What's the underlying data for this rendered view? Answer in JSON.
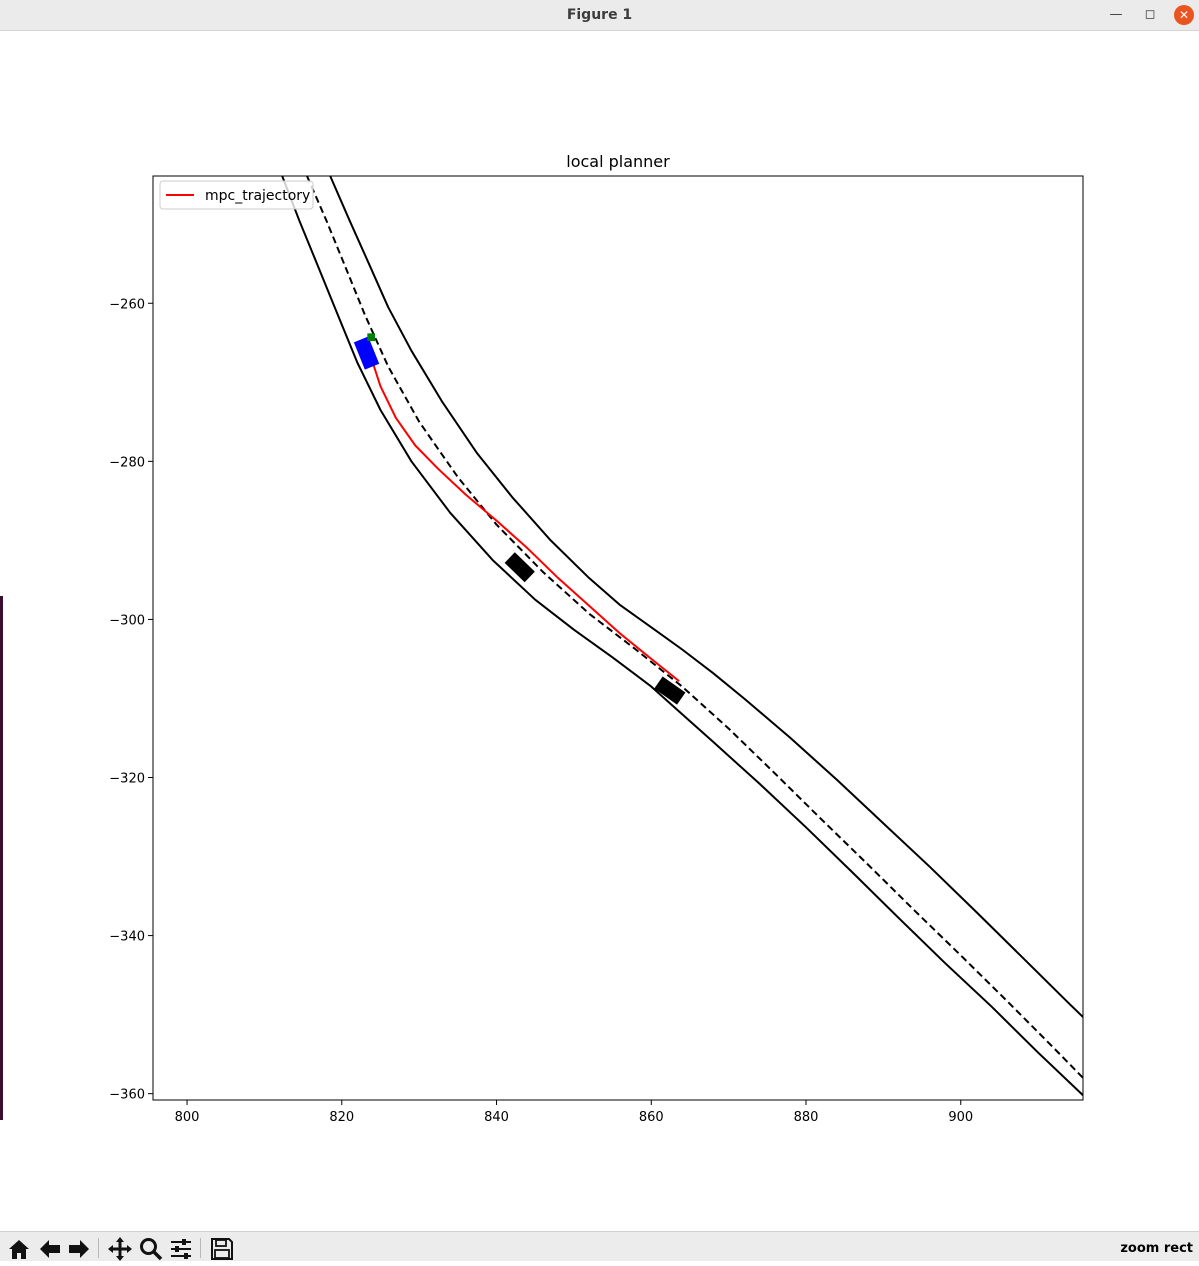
{
  "window": {
    "title": "Figure 1",
    "minimize_icon": "minimize-icon",
    "maximize_icon": "maximize-icon",
    "close_icon": "close-icon"
  },
  "toolbar": {
    "buttons": [
      {
        "name": "home-button",
        "icon": "home-icon"
      },
      {
        "name": "back-button",
        "icon": "arrow-left-icon"
      },
      {
        "name": "forward-button",
        "icon": "arrow-right-icon"
      },
      {
        "name": "pan-button",
        "icon": "move-icon"
      },
      {
        "name": "zoom-button",
        "icon": "magnifier-icon"
      },
      {
        "name": "configure-subplots-button",
        "icon": "sliders-icon"
      },
      {
        "name": "save-button",
        "icon": "floppy-icon"
      }
    ],
    "status": "zoom rect"
  },
  "chart_data": {
    "type": "line",
    "title": "local planner",
    "xlabel": "",
    "ylabel": "",
    "xlim": [
      795.6,
      915.8
    ],
    "ylim": [
      -360.8,
      -243.9
    ],
    "xticks": [
      800,
      820,
      840,
      860,
      880,
      900
    ],
    "yticks": [
      -260,
      -280,
      -300,
      -320,
      -340,
      -360
    ],
    "grid": false,
    "legend": {
      "location": "upper-left",
      "entries": [
        {
          "label": "mpc_trajectory",
          "color": "#ff0000"
        }
      ]
    },
    "series": [
      {
        "name": "mpc_trajectory",
        "color": "#ff0000",
        "style": "solid",
        "x": [
          823.6,
          825.0,
          827.0,
          829.5,
          832.5,
          836.0,
          840.0,
          844.0,
          848.0,
          852.0,
          856.0,
          860.0,
          863.6
        ],
        "y": [
          -266.3,
          -270.5,
          -274.5,
          -278.0,
          -281.0,
          -284.2,
          -287.5,
          -291.0,
          -294.8,
          -298.3,
          -301.8,
          -305.0,
          -307.8
        ]
      },
      {
        "color": "#000000",
        "style": "dashed",
        "x": [
          815.5,
          818.0,
          820.5,
          823.0,
          826.0,
          830.0,
          835.0,
          840.0,
          846.0,
          852.0,
          858.0,
          864.0,
          870.0,
          876.0,
          882.0,
          888.0,
          894.0,
          900.0,
          906.0,
          912.0,
          915.8
        ],
        "y": [
          -243.9,
          -249.5,
          -255.5,
          -261.5,
          -268.0,
          -275.0,
          -282.0,
          -288.0,
          -294.0,
          -299.3,
          -303.8,
          -308.5,
          -313.8,
          -319.5,
          -325.3,
          -331.0,
          -336.8,
          -342.5,
          -348.3,
          -354.2,
          -358.0
        ]
      },
      {
        "color": "#000000",
        "style": "solid",
        "x": [
          818.5,
          821.0,
          823.5,
          826.0,
          829.0,
          833.0,
          837.5,
          842.0,
          847.0,
          852.0,
          856.0,
          860.0,
          864.0,
          868.0,
          872.0,
          878.0,
          884.0,
          890.0,
          896.0,
          902.0,
          908.0,
          914.0,
          915.8
        ],
        "y": [
          -243.9,
          -249.5,
          -255.0,
          -260.5,
          -266.0,
          -272.5,
          -279.0,
          -284.5,
          -290.0,
          -294.8,
          -298.2,
          -301.0,
          -303.8,
          -306.8,
          -310.0,
          -315.0,
          -320.3,
          -325.8,
          -331.3,
          -337.0,
          -342.8,
          -348.6,
          -350.3
        ]
      },
      {
        "color": "#000000",
        "style": "solid",
        "x": [
          812.3,
          814.5,
          817.0,
          819.5,
          822.0,
          825.0,
          829.0,
          834.0,
          839.5,
          845.0,
          850.0,
          855.0,
          860.0,
          864.0,
          868.0,
          874.0,
          880.0,
          886.0,
          892.0,
          898.0,
          904.0,
          910.0,
          915.8
        ],
        "y": [
          -243.9,
          -249.5,
          -255.5,
          -261.5,
          -267.5,
          -273.5,
          -280.0,
          -286.5,
          -292.5,
          -297.5,
          -301.3,
          -304.8,
          -308.5,
          -312.0,
          -315.5,
          -320.8,
          -326.3,
          -332.0,
          -337.8,
          -343.5,
          -349.0,
          -354.8,
          -360.2
        ]
      }
    ],
    "objects": [
      {
        "kind": "ego-vehicle",
        "color": "#0000ff",
        "x": 823.2,
        "y": -266.3,
        "length": 3.8,
        "width": 2.0,
        "heading_deg": -68
      },
      {
        "kind": "goal-marker",
        "color": "#008000",
        "x": 823.8,
        "y": -264.3,
        "size": 1.0
      },
      {
        "kind": "obstacle-vehicle",
        "color": "#000000",
        "x": 843.0,
        "y": -293.4,
        "length": 3.6,
        "width": 1.9,
        "heading_deg": -44
      },
      {
        "kind": "obstacle-vehicle",
        "color": "#000000",
        "x": 862.4,
        "y": -309.0,
        "length": 3.6,
        "width": 1.9,
        "heading_deg": -35
      }
    ]
  }
}
